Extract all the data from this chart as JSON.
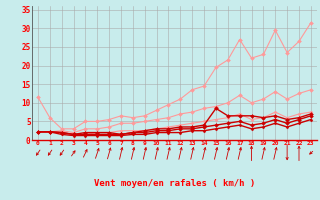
{
  "xlabel": "Vent moyen/en rafales ( km/h )",
  "x": [
    0,
    1,
    2,
    3,
    4,
    5,
    6,
    7,
    8,
    9,
    10,
    11,
    12,
    13,
    14,
    15,
    16,
    17,
    18,
    19,
    20,
    21,
    22,
    23
  ],
  "ylim": [
    0,
    36
  ],
  "xlim": [
    -0.5,
    23.5
  ],
  "yticks": [
    0,
    5,
    10,
    15,
    20,
    25,
    30,
    35
  ],
  "bg_color": "#c8ecec",
  "grid_color": "#aaaaaa",
  "series": [
    {
      "values": [
        11.5,
        6.0,
        3.0,
        3.0,
        5.0,
        5.0,
        5.5,
        6.5,
        6.0,
        6.5,
        8.0,
        9.5,
        11.0,
        13.5,
        14.5,
        19.5,
        21.5,
        27.0,
        22.0,
        23.0,
        29.5,
        23.5,
        26.5,
        31.5
      ],
      "color": "#ff9999",
      "lw": 0.8,
      "marker": "D",
      "ms": 2.0
    },
    {
      "values": [
        2.2,
        2.2,
        2.5,
        2.0,
        3.0,
        3.0,
        3.5,
        4.5,
        4.5,
        5.0,
        5.5,
        6.0,
        7.0,
        7.5,
        8.5,
        9.0,
        10.0,
        12.0,
        10.0,
        11.0,
        13.0,
        11.0,
        12.5,
        13.5
      ],
      "color": "#ff9999",
      "lw": 0.8,
      "marker": "D",
      "ms": 2.0
    },
    {
      "values": [
        2.2,
        2.2,
        2.0,
        1.5,
        1.5,
        2.0,
        2.0,
        2.5,
        2.5,
        2.5,
        3.0,
        3.5,
        4.0,
        4.5,
        5.0,
        5.5,
        6.0,
        7.0,
        5.5,
        6.0,
        7.5,
        6.0,
        7.0,
        7.5
      ],
      "color": "#ff9999",
      "lw": 0.8,
      "marker": "D",
      "ms": 1.5
    },
    {
      "values": [
        2.2,
        2.2,
        2.0,
        1.5,
        2.0,
        2.0,
        2.0,
        1.5,
        2.0,
        2.5,
        3.0,
        3.0,
        3.5,
        3.5,
        4.0,
        8.5,
        6.5,
        6.5,
        6.5,
        6.0,
        6.5,
        5.5,
        6.0,
        7.0
      ],
      "color": "#cc0000",
      "lw": 1.0,
      "marker": "D",
      "ms": 2.0
    },
    {
      "values": [
        2.2,
        2.2,
        2.0,
        1.5,
        1.5,
        1.5,
        1.5,
        1.5,
        2.0,
        2.0,
        2.5,
        2.5,
        3.0,
        3.0,
        3.5,
        4.0,
        4.5,
        5.0,
        4.0,
        4.5,
        5.5,
        4.5,
        5.5,
        6.5
      ],
      "color": "#cc0000",
      "lw": 1.0,
      "marker": "D",
      "ms": 2.0
    },
    {
      "values": [
        2.2,
        2.2,
        1.5,
        1.2,
        1.2,
        1.2,
        1.2,
        1.2,
        1.5,
        1.5,
        2.0,
        2.0,
        2.0,
        2.5,
        2.5,
        3.0,
        3.5,
        4.0,
        3.0,
        3.5,
        4.5,
        3.5,
        4.5,
        5.5
      ],
      "color": "#cc0000",
      "lw": 1.0,
      "marker": "D",
      "ms": 1.5
    }
  ],
  "arrow_angles": [
    210,
    210,
    210,
    30,
    40,
    50,
    55,
    60,
    60,
    60,
    60,
    60,
    60,
    60,
    60,
    60,
    60,
    60,
    90,
    60,
    60,
    270,
    90,
    200
  ],
  "arrow_color": "#cc0000"
}
